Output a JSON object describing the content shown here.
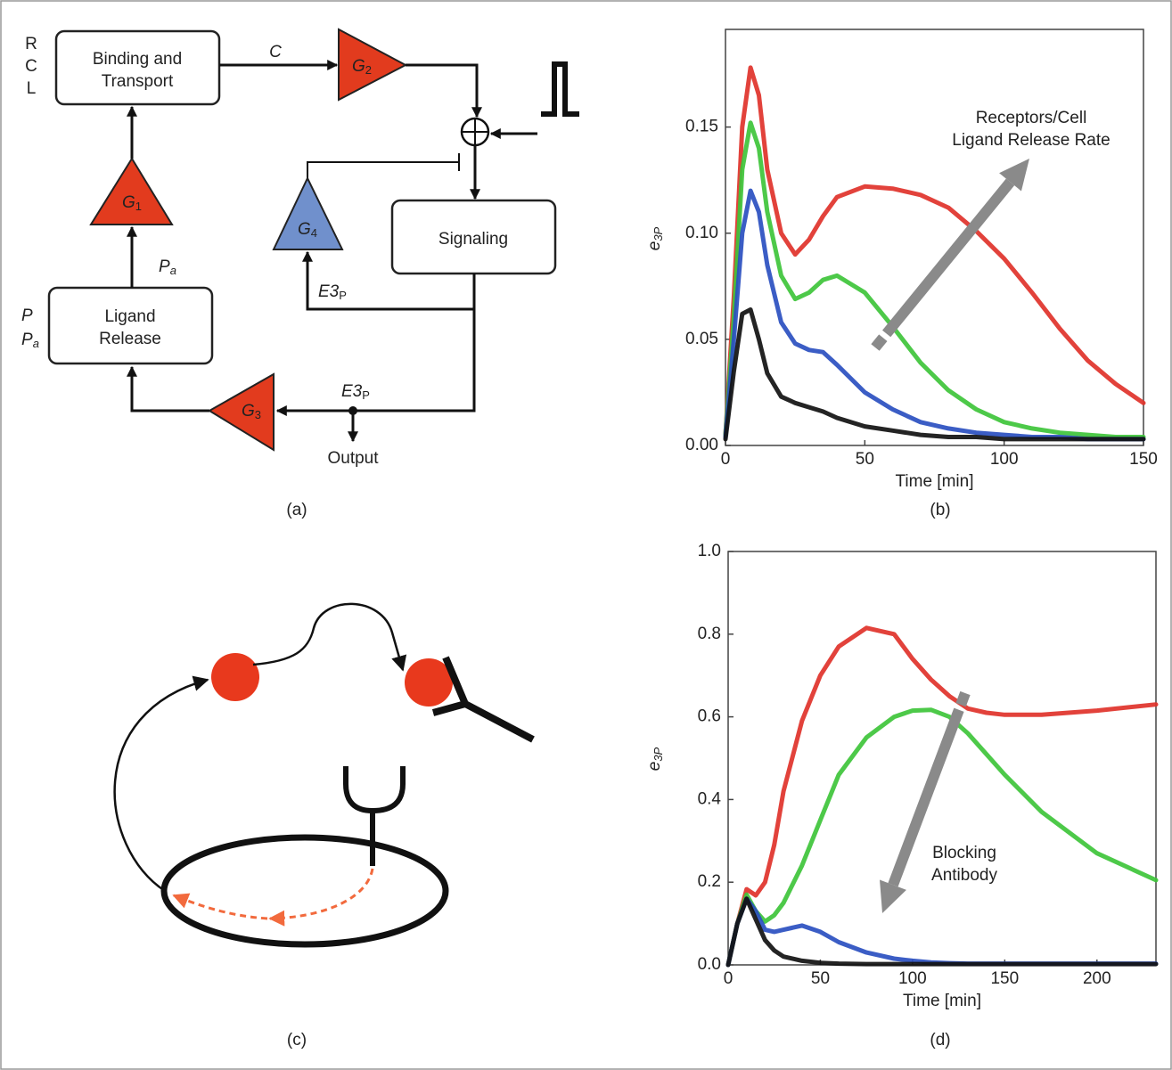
{
  "diagram": {
    "top_left_labels": [
      "R",
      "C",
      "L"
    ],
    "binding_box": [
      "Binding and",
      "Transport"
    ],
    "signaling_box": "Signaling",
    "ligand_box": [
      "Ligand",
      "Release"
    ],
    "left_labels": [
      {
        "symbol": "P"
      },
      {
        "symbol": "P",
        "sub": "a"
      }
    ],
    "gains": [
      {
        "symbol": "G",
        "sub": "1"
      },
      {
        "symbol": "G",
        "sub": "2"
      },
      {
        "symbol": "G",
        "sub": "3"
      },
      {
        "symbol": "G",
        "sub": "4"
      }
    ],
    "edge_c": "C",
    "edge_pa": {
      "symbol": "P",
      "sub": "a"
    },
    "edge_e3p": [
      {
        "symbol": "E3",
        "sub": "P"
      },
      {
        "symbol": "E3",
        "sub": "P"
      }
    ],
    "output": "Output",
    "panel_a": "(a)",
    "panel_c": "(c)"
  },
  "chart_data": [
    {
      "type": "line",
      "panel_label": "(b)",
      "x_label": "Time [min]",
      "y_label": "e",
      "y_label_sub": "3P",
      "annotation": [
        "Receptors/Cell",
        "Ligand Release Rate"
      ],
      "x": [
        0,
        3,
        6,
        9,
        12,
        15,
        20,
        25,
        30,
        35,
        40,
        50,
        60,
        70,
        80,
        90,
        100,
        110,
        120,
        130,
        140,
        150
      ],
      "series": [
        {
          "color": "#e0322a",
          "values": [
            0.005,
            0.07,
            0.15,
            0.178,
            0.165,
            0.13,
            0.1,
            0.09,
            0.097,
            0.108,
            0.117,
            0.122,
            0.121,
            0.118,
            0.112,
            0.101,
            0.088,
            0.072,
            0.055,
            0.04,
            0.029,
            0.02
          ]
        },
        {
          "color": "#3ec43a",
          "values": [
            0.005,
            0.06,
            0.13,
            0.152,
            0.14,
            0.11,
            0.08,
            0.069,
            0.072,
            0.078,
            0.08,
            0.072,
            0.056,
            0.039,
            0.026,
            0.017,
            0.011,
            0.008,
            0.006,
            0.005,
            0.004,
            0.004
          ]
        },
        {
          "color": "#2a4fc0",
          "values": [
            0.004,
            0.05,
            0.1,
            0.12,
            0.11,
            0.085,
            0.058,
            0.048,
            0.045,
            0.044,
            0.038,
            0.025,
            0.017,
            0.011,
            0.008,
            0.006,
            0.005,
            0.004,
            0.004,
            0.003,
            0.003,
            0.003
          ]
        },
        {
          "color": "#111111",
          "values": [
            0.003,
            0.035,
            0.062,
            0.064,
            0.05,
            0.034,
            0.023,
            0.02,
            0.018,
            0.016,
            0.013,
            0.009,
            0.007,
            0.005,
            0.004,
            0.004,
            0.003,
            0.003,
            0.003,
            0.003,
            0.003,
            0.003
          ]
        }
      ],
      "xlim": [
        0,
        150
      ],
      "xticks": [
        0,
        50,
        100,
        150
      ],
      "ylim": [
        0,
        0.196
      ],
      "yticks": [
        {
          "value": 0,
          "label": "0.00"
        },
        {
          "value": 0.05,
          "label": "0.05"
        },
        {
          "value": 0.1,
          "label": "0.10"
        },
        {
          "value": 0.15,
          "label": "0.15"
        }
      ]
    },
    {
      "type": "line",
      "panel_label": "(d)",
      "x_label": "Time [min]",
      "y_label": "e",
      "y_label_sub": "3P",
      "annotation": [
        "Blocking",
        "Antibody"
      ],
      "x": [
        0,
        5,
        10,
        15,
        20,
        25,
        30,
        40,
        50,
        60,
        75,
        90,
        100,
        110,
        120,
        130,
        140,
        150,
        170,
        200,
        232
      ],
      "series": [
        {
          "color": "#e0322a",
          "values": [
            0,
            0.1,
            0.183,
            0.168,
            0.2,
            0.29,
            0.42,
            0.59,
            0.7,
            0.77,
            0.815,
            0.8,
            0.74,
            0.69,
            0.65,
            0.62,
            0.61,
            0.605,
            0.605,
            0.615,
            0.63
          ]
        },
        {
          "color": "#3ec43a",
          "values": [
            0,
            0.1,
            0.17,
            0.13,
            0.105,
            0.12,
            0.15,
            0.24,
            0.35,
            0.46,
            0.55,
            0.6,
            0.615,
            0.617,
            0.6,
            0.56,
            0.51,
            0.46,
            0.37,
            0.27,
            0.205
          ]
        },
        {
          "color": "#2a4fc0",
          "values": [
            0,
            0.1,
            0.16,
            0.13,
            0.085,
            0.08,
            0.085,
            0.095,
            0.08,
            0.055,
            0.03,
            0.015,
            0.01,
            0.006,
            0.004,
            0.003,
            0.003,
            0.003,
            0.003,
            0.003,
            0.003
          ]
        },
        {
          "color": "#111111",
          "values": [
            0,
            0.1,
            0.16,
            0.11,
            0.06,
            0.035,
            0.02,
            0.01,
            0.005,
            0.003,
            0.002,
            0.002,
            0.002,
            0.002,
            0.002,
            0.002,
            0.002,
            0.002,
            0.002,
            0.002,
            0.002
          ]
        }
      ],
      "xlim": [
        0,
        232
      ],
      "xticks": [
        0,
        50,
        100,
        150,
        200
      ],
      "ylim": [
        0,
        1
      ],
      "yticks": [
        {
          "value": 0,
          "label": "0.0"
        },
        {
          "value": 0.2,
          "label": "0.2"
        },
        {
          "value": 0.4,
          "label": "0.4"
        },
        {
          "value": 0.6,
          "label": "0.6"
        },
        {
          "value": 0.8,
          "label": "0.8"
        },
        {
          "value": 1,
          "label": "1.0"
        }
      ]
    }
  ]
}
